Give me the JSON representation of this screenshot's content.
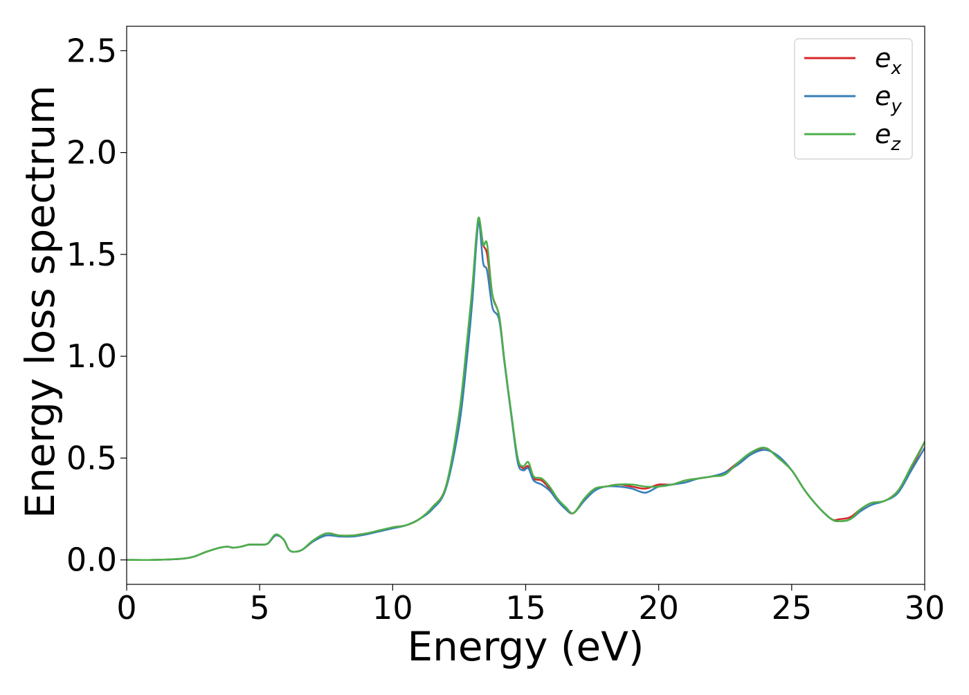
{
  "chart_data": {
    "type": "line",
    "title": "",
    "xlabel": "Energy (eV)",
    "ylabel": "Energy loss spectrum",
    "xlim": [
      0,
      30
    ],
    "ylim": [
      -0.12,
      2.62
    ],
    "xticks": [
      0,
      5,
      10,
      15,
      20,
      25,
      30
    ],
    "xtick_labels": [
      "0",
      "5",
      "10",
      "15",
      "20",
      "25",
      "30"
    ],
    "yticks": [
      0.0,
      0.5,
      1.0,
      1.5,
      2.0,
      2.5
    ],
    "ytick_labels": [
      "0.0",
      "0.5",
      "1.0",
      "1.5",
      "2.0",
      "2.5"
    ],
    "grid": false,
    "legend_position": "top-right",
    "series": [
      {
        "name": "e_x",
        "legend_base": "e",
        "legend_sub": "x",
        "color": "#d62728",
        "x": [
          0,
          1,
          2,
          2.5,
          3,
          3.5,
          3.8,
          4.0,
          4.3,
          4.6,
          5.0,
          5.3,
          5.6,
          5.9,
          6.1,
          6.3,
          6.6,
          7.0,
          7.5,
          8.0,
          8.5,
          9.0,
          9.5,
          10.0,
          10.5,
          11.0,
          11.5,
          12.0,
          12.5,
          12.8,
          13.0,
          13.15,
          13.25,
          13.4,
          13.55,
          13.75,
          14.0,
          14.2,
          14.45,
          14.7,
          14.9,
          15.1,
          15.3,
          15.6,
          15.9,
          16.2,
          16.5,
          16.8,
          17.2,
          17.6,
          18.0,
          18.5,
          19.0,
          19.5,
          20.0,
          20.5,
          21.0,
          21.5,
          22.0,
          22.5,
          23.0,
          23.5,
          24.0,
          24.5,
          25.0,
          25.5,
          26.0,
          26.5,
          26.8,
          27.2,
          27.6,
          28.0,
          28.5,
          29.0,
          29.5,
          30.0
        ],
        "values": [
          0,
          0,
          0.005,
          0.015,
          0.04,
          0.06,
          0.065,
          0.06,
          0.065,
          0.075,
          0.075,
          0.08,
          0.12,
          0.1,
          0.05,
          0.04,
          0.05,
          0.09,
          0.13,
          0.12,
          0.12,
          0.13,
          0.14,
          0.16,
          0.17,
          0.2,
          0.26,
          0.36,
          0.7,
          1.05,
          1.32,
          1.58,
          1.67,
          1.55,
          1.5,
          1.3,
          1.2,
          0.98,
          0.72,
          0.5,
          0.45,
          0.46,
          0.4,
          0.39,
          0.35,
          0.3,
          0.25,
          0.23,
          0.3,
          0.35,
          0.36,
          0.37,
          0.36,
          0.35,
          0.37,
          0.37,
          0.39,
          0.4,
          0.41,
          0.43,
          0.48,
          0.52,
          0.55,
          0.5,
          0.44,
          0.34,
          0.26,
          0.2,
          0.2,
          0.21,
          0.25,
          0.28,
          0.29,
          0.34,
          0.45,
          0.58
        ]
      },
      {
        "name": "e_y",
        "legend_base": "e",
        "legend_sub": "y",
        "color": "#377eb8",
        "x": [
          0,
          1,
          2,
          2.5,
          3,
          3.5,
          3.8,
          4.0,
          4.3,
          4.6,
          5.0,
          5.3,
          5.6,
          5.9,
          6.1,
          6.3,
          6.6,
          7.0,
          7.5,
          8.0,
          8.5,
          9.0,
          9.5,
          10.0,
          10.5,
          11.0,
          11.5,
          12.0,
          12.5,
          12.8,
          13.0,
          13.15,
          13.25,
          13.4,
          13.55,
          13.75,
          14.0,
          14.2,
          14.45,
          14.7,
          14.9,
          15.1,
          15.3,
          15.6,
          15.9,
          16.2,
          16.5,
          16.8,
          17.2,
          17.6,
          18.0,
          18.5,
          19.0,
          19.5,
          20.0,
          20.5,
          21.0,
          21.5,
          22.0,
          22.5,
          23.0,
          23.5,
          24.0,
          24.5,
          25.0,
          25.5,
          26.0,
          26.5,
          26.8,
          27.2,
          27.6,
          28.0,
          28.5,
          29.0,
          29.5,
          30.0
        ],
        "values": [
          0,
          0,
          0.005,
          0.015,
          0.04,
          0.06,
          0.065,
          0.06,
          0.065,
          0.075,
          0.075,
          0.08,
          0.12,
          0.1,
          0.05,
          0.04,
          0.05,
          0.09,
          0.12,
          0.115,
          0.115,
          0.125,
          0.14,
          0.155,
          0.17,
          0.2,
          0.25,
          0.35,
          0.66,
          1.0,
          1.28,
          1.56,
          1.66,
          1.46,
          1.42,
          1.24,
          1.18,
          0.97,
          0.72,
          0.48,
          0.44,
          0.45,
          0.39,
          0.37,
          0.34,
          0.29,
          0.25,
          0.23,
          0.29,
          0.34,
          0.36,
          0.36,
          0.35,
          0.33,
          0.36,
          0.37,
          0.38,
          0.4,
          0.41,
          0.43,
          0.47,
          0.52,
          0.54,
          0.51,
          0.44,
          0.34,
          0.26,
          0.2,
          0.19,
          0.2,
          0.24,
          0.27,
          0.29,
          0.33,
          0.44,
          0.55
        ]
      },
      {
        "name": "e_z",
        "legend_base": "e",
        "legend_sub": "z",
        "color": "#4daf4a",
        "x": [
          0,
          1,
          2,
          2.5,
          3,
          3.5,
          3.8,
          4.0,
          4.3,
          4.6,
          5.0,
          5.3,
          5.6,
          5.9,
          6.1,
          6.3,
          6.6,
          7.0,
          7.5,
          8.0,
          8.5,
          9.0,
          9.5,
          10.0,
          10.5,
          11.0,
          11.5,
          12.0,
          12.5,
          12.8,
          13.0,
          13.15,
          13.25,
          13.4,
          13.55,
          13.75,
          14.0,
          14.2,
          14.45,
          14.7,
          14.9,
          15.1,
          15.3,
          15.6,
          15.9,
          16.2,
          16.5,
          16.8,
          17.2,
          17.6,
          18.0,
          18.5,
          19.0,
          19.5,
          20.0,
          20.5,
          21.0,
          21.5,
          22.0,
          22.5,
          23.0,
          23.5,
          24.0,
          24.5,
          25.0,
          25.5,
          26.0,
          26.5,
          26.8,
          27.2,
          27.6,
          28.0,
          28.5,
          29.0,
          29.5,
          30.0
        ],
        "values": [
          0,
          0,
          0.005,
          0.015,
          0.04,
          0.06,
          0.065,
          0.06,
          0.065,
          0.075,
          0.075,
          0.08,
          0.125,
          0.1,
          0.05,
          0.04,
          0.05,
          0.095,
          0.13,
          0.12,
          0.12,
          0.13,
          0.145,
          0.16,
          0.17,
          0.2,
          0.26,
          0.36,
          0.72,
          1.08,
          1.35,
          1.6,
          1.68,
          1.55,
          1.55,
          1.3,
          1.2,
          0.98,
          0.73,
          0.5,
          0.46,
          0.48,
          0.41,
          0.4,
          0.36,
          0.3,
          0.26,
          0.23,
          0.3,
          0.35,
          0.36,
          0.37,
          0.37,
          0.36,
          0.36,
          0.37,
          0.39,
          0.4,
          0.41,
          0.42,
          0.48,
          0.53,
          0.55,
          0.5,
          0.44,
          0.34,
          0.26,
          0.2,
          0.19,
          0.2,
          0.25,
          0.28,
          0.29,
          0.34,
          0.46,
          0.58
        ]
      }
    ]
  }
}
